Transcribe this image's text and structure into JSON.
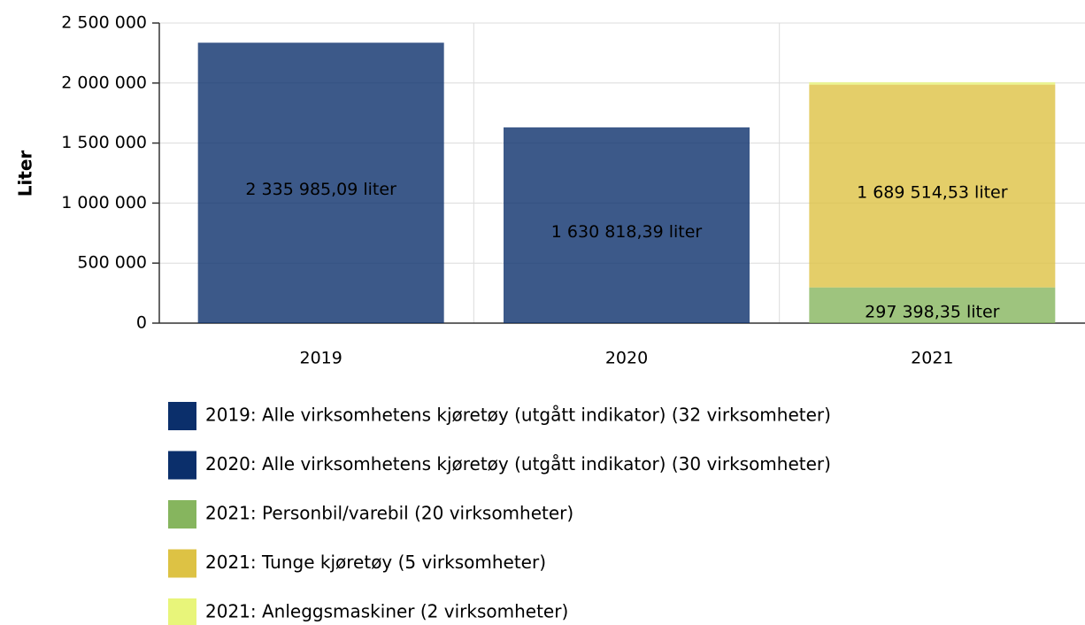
{
  "chart_data": {
    "type": "bar",
    "stacked": true,
    "y_label": "Liter",
    "categories": [
      "2019",
      "2020",
      "2021"
    ],
    "series": [
      {
        "name": "2019: Alle virksomhetens kjøretøy (utgått indikator) (32 virksomheter)",
        "color": "#0b2f6b",
        "values": [
          2335985.09,
          null,
          null
        ],
        "value_labels": [
          "2 335 985,09 liter",
          null,
          null
        ]
      },
      {
        "name": "2020: Alle virksomhetens kjøretøy (utgått indikator) (30 virksomheter)",
        "color": "#0b2f6b",
        "values": [
          null,
          1630818.39,
          null
        ],
        "value_labels": [
          null,
          "1 630 818,39 liter",
          null
        ]
      },
      {
        "name": "2021: Personbil/varebil (20 virksomheter)",
        "color": "#86b55e",
        "values": [
          null,
          null,
          297398.35
        ],
        "value_labels": [
          null,
          null,
          "297 398,35 liter"
        ]
      },
      {
        "name": "2021: Tunge kjøretøy (5 virksomheter)",
        "color": "#ddc244",
        "values": [
          null,
          null,
          1689514.53
        ],
        "value_labels": [
          null,
          null,
          "1 689 514,53 liter"
        ]
      },
      {
        "name": "2021: Anleggsmaskiner (2 virksomheter)",
        "color": "#e8f57a",
        "values": [
          null,
          null,
          20000
        ]
      }
    ],
    "ylim": [
      0,
      2500000
    ],
    "yticks": [
      0,
      {
        "value": 500000,
        "label": "500 000"
      },
      {
        "value": 1000000,
        "label": "1 000 000"
      },
      {
        "value": 1500000,
        "label": "1 500 000"
      },
      {
        "value": 2000000,
        "label": "2 000 000"
      },
      {
        "value": 2500000,
        "label": "2 500 000"
      }
    ],
    "grid": true,
    "legend": "bottom"
  }
}
